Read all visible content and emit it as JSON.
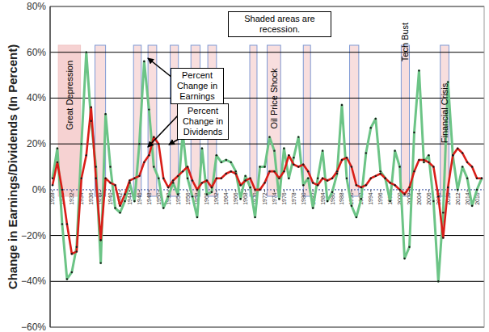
{
  "chart_data": {
    "type": "line",
    "y_label": "Change in Earnings/Dividends (In Percent)",
    "annotations": [
      "Shaded areas are recession.",
      "Percent Change in Earnings",
      "Percent Change in Dividends"
    ],
    "x": [
      1928,
      1929,
      1930,
      1931,
      1932,
      1933,
      1934,
      1935,
      1936,
      1937,
      1938,
      1939,
      1940,
      1941,
      1942,
      1943,
      1944,
      1945,
      1946,
      1947,
      1948,
      1949,
      1950,
      1951,
      1952,
      1953,
      1954,
      1955,
      1956,
      1957,
      1958,
      1959,
      1960,
      1961,
      1962,
      1963,
      1964,
      1965,
      1966,
      1967,
      1968,
      1969,
      1970,
      1971,
      1972,
      1973,
      1974,
      1975,
      1976,
      1977,
      1978,
      1979,
      1980,
      1981,
      1982,
      1983,
      1984,
      1985,
      1986,
      1987,
      1988,
      1989,
      1990,
      1991,
      1992,
      1993,
      1994,
      1995,
      1996,
      1997,
      1998,
      1999,
      2000,
      2001,
      2002,
      2003,
      2004,
      2005,
      2006,
      2007,
      2008,
      2009,
      2010,
      2011,
      2012,
      2013,
      2014,
      2015,
      2016,
      2017
    ],
    "series": [
      {
        "name": "Percent Change in Earnings",
        "color": "#6cc486",
        "marker": "dot",
        "values": [
          5,
          18,
          -15,
          -39,
          -36,
          -25,
          20,
          60,
          30,
          10,
          -32,
          33,
          10,
          -8,
          -10,
          -5,
          3,
          -5,
          20,
          56,
          35,
          10,
          5,
          -8,
          -3,
          3,
          -2,
          25,
          5,
          -3,
          -12,
          18,
          -2,
          -1,
          15,
          12,
          13,
          12,
          8,
          -4,
          6,
          1,
          -12,
          10,
          10,
          23,
          17,
          -4,
          18,
          5,
          14,
          23,
          2,
          5,
          -8,
          5,
          17,
          -5,
          -1,
          7,
          37,
          5,
          -7,
          -12,
          -4,
          16,
          27,
          31,
          8,
          5,
          -5,
          17,
          10,
          -30,
          -25,
          25,
          52,
          12,
          15,
          -5,
          -40,
          -10,
          47,
          15,
          0,
          10,
          5,
          -7,
          0,
          5
        ]
      },
      {
        "name": "Percent Change in Dividends",
        "color": "#d91e18",
        "marker": "dot",
        "values": [
          2,
          12,
          0,
          -15,
          -28,
          -27,
          5,
          15,
          36,
          5,
          -22,
          5,
          3,
          2,
          -7,
          -2,
          4,
          5,
          6,
          12,
          15,
          23,
          20,
          5,
          1,
          4,
          6,
          8,
          10,
          4,
          0,
          3,
          4,
          1,
          5,
          5,
          7,
          8,
          7,
          2,
          4,
          5,
          0,
          0,
          3,
          8,
          8,
          5,
          8,
          15,
          11,
          10,
          11,
          8,
          3,
          2,
          5,
          4,
          5,
          8,
          13,
          14,
          10,
          2,
          1,
          2,
          5,
          6,
          7,
          5,
          3,
          2,
          0,
          -2,
          1,
          8,
          13,
          13,
          12,
          10,
          -3,
          -21,
          1,
          15,
          18,
          16,
          12,
          10,
          5,
          5
        ]
      }
    ],
    "recessions": [
      {
        "start": 1929.2,
        "end": 1933.8,
        "label": "Great Depression"
      },
      {
        "start": 1936.8,
        "end": 1939
      },
      {
        "start": 1944.8,
        "end": 1946.4
      },
      {
        "start": 1947.8,
        "end": 1949.6
      },
      {
        "start": 1952.4,
        "end": 1954.1
      },
      {
        "start": 1956.7,
        "end": 1958.6
      },
      {
        "start": 1960.2,
        "end": 1962
      },
      {
        "start": 1968.9,
        "end": 1970.4
      },
      {
        "start": 1972.5,
        "end": 1975.3,
        "label": "Oil Price Shock"
      },
      {
        "start": 1980,
        "end": 1981.5
      },
      {
        "start": 1989.6,
        "end": 1991.5
      },
      {
        "start": 2000.3,
        "end": 2002,
        "label": "Tech Bust"
      },
      {
        "start": 2008.4,
        "end": 2010.2,
        "label": "Financial Crisis"
      }
    ],
    "xlim": [
      1927.5,
      2017.5
    ],
    "xticks": [
      1928,
      1930,
      1932,
      1934,
      1936,
      1938,
      1940,
      1942,
      1944,
      1946,
      1948,
      1950,
      1952,
      1954,
      1956,
      1958,
      1960,
      1962,
      1964,
      1966,
      1968,
      1970,
      1972,
      1974,
      1976,
      1978,
      1980,
      1982,
      1984,
      1986,
      1988,
      1990,
      1992,
      1994,
      1996,
      1998,
      2000,
      2002,
      2004,
      2006,
      2008,
      2010,
      2012,
      2014,
      2016
    ],
    "ylim": [
      -60,
      80
    ],
    "yticks": [
      {
        "value": -60,
        "label": "−60%"
      },
      {
        "value": -40,
        "label": "−40%"
      },
      {
        "value": -20,
        "label": "−20%"
      },
      {
        "value": 0,
        "label": "0%"
      },
      {
        "value": 20,
        "label": "20%"
      },
      {
        "value": 40,
        "label": "40%"
      },
      {
        "value": 60,
        "label": "60%"
      },
      {
        "value": 80,
        "label": "80%"
      }
    ],
    "grid": true
  }
}
